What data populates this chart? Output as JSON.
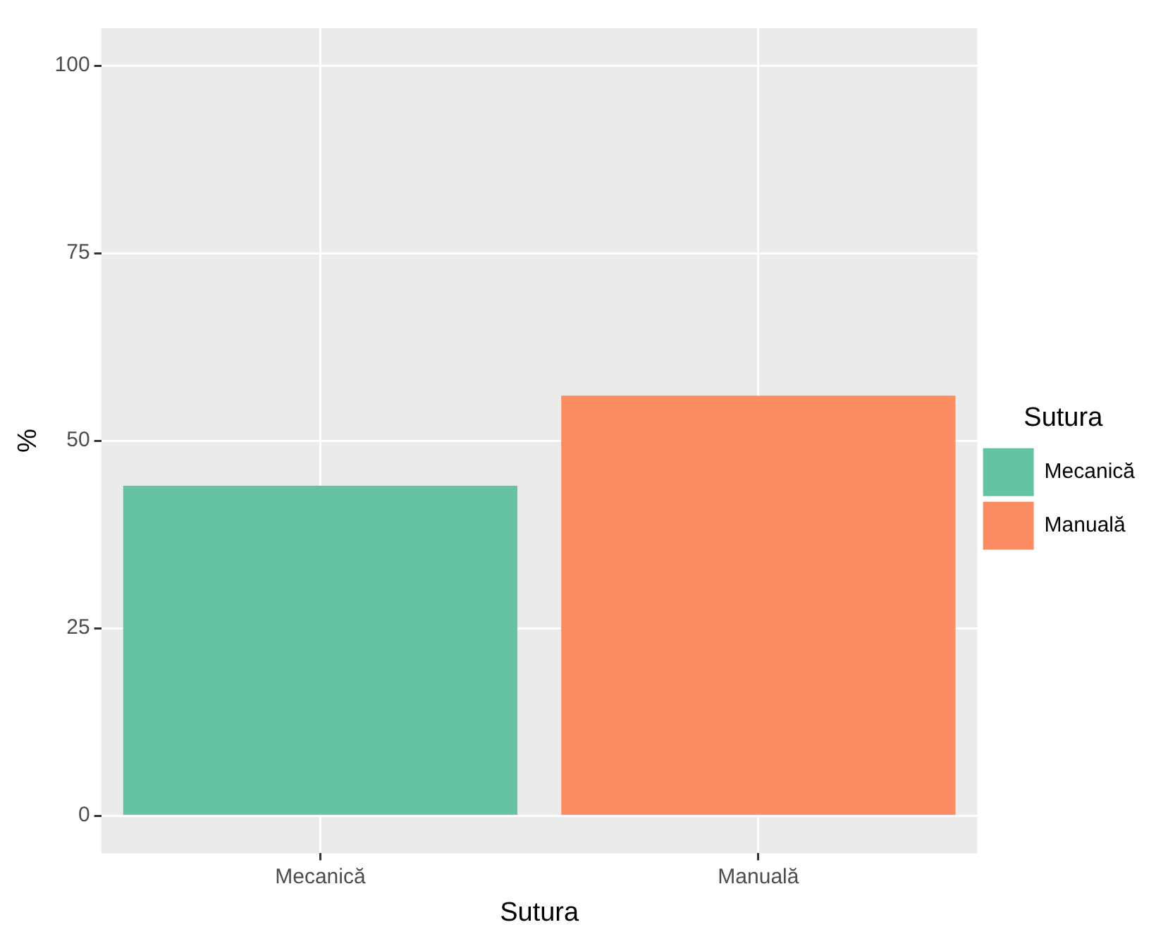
{
  "chart_data": {
    "type": "bar",
    "xlabel": "Sutura",
    "ylabel": "%",
    "legend_title": "Sutura",
    "legend": "right",
    "grid": true,
    "categories": [
      "Mecanică",
      "Manuală"
    ],
    "series": [
      {
        "name": "Mecanică",
        "color": "#66c2a5",
        "values": [
          44,
          null
        ]
      },
      {
        "name": "Manuală",
        "color": "#fc8d62",
        "values": [
          null,
          56
        ]
      }
    ],
    "ylim": [
      -5,
      105
    ],
    "yticks": [
      0,
      25,
      50,
      75,
      100
    ]
  }
}
